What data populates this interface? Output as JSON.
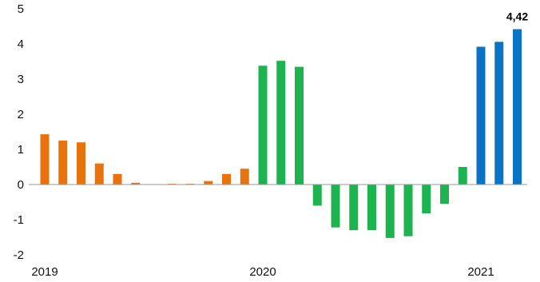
{
  "chart_data": {
    "type": "bar",
    "title": "",
    "xlabel": "",
    "ylabel": "",
    "ylim": [
      -2,
      5
    ],
    "yticks": [
      "-2",
      "-1",
      "0",
      "1",
      "2",
      "3",
      "4",
      "5"
    ],
    "x_labels": [
      "2019",
      "2020",
      "2021"
    ],
    "grid": false,
    "colors": {
      "orange": "#E8720C",
      "green": "#1DB350",
      "blue": "#0A74C4"
    },
    "bars": [
      {
        "value": 1.43,
        "color": "orange"
      },
      {
        "value": 1.25,
        "color": "orange"
      },
      {
        "value": 1.2,
        "color": "orange"
      },
      {
        "value": 0.6,
        "color": "orange"
      },
      {
        "value": 0.3,
        "color": "orange"
      },
      {
        "value": 0.05,
        "color": "orange"
      },
      {
        "value": 0.0,
        "color": "orange"
      },
      {
        "value": 0.02,
        "color": "orange"
      },
      {
        "value": 0.02,
        "color": "orange"
      },
      {
        "value": 0.1,
        "color": "orange"
      },
      {
        "value": 0.3,
        "color": "orange"
      },
      {
        "value": 0.45,
        "color": "orange"
      },
      {
        "value": 3.38,
        "color": "green"
      },
      {
        "value": 3.52,
        "color": "green"
      },
      {
        "value": 3.35,
        "color": "green"
      },
      {
        "value": -0.6,
        "color": "green"
      },
      {
        "value": -1.22,
        "color": "green"
      },
      {
        "value": -1.3,
        "color": "green"
      },
      {
        "value": -1.3,
        "color": "green"
      },
      {
        "value": -1.52,
        "color": "green"
      },
      {
        "value": -1.47,
        "color": "green"
      },
      {
        "value": -0.82,
        "color": "green"
      },
      {
        "value": -0.55,
        "color": "green"
      },
      {
        "value": 0.5,
        "color": "green"
      },
      {
        "value": 3.92,
        "color": "blue"
      },
      {
        "value": 4.06,
        "color": "blue"
      },
      {
        "value": 4.42,
        "color": "blue"
      }
    ],
    "data_labels": [
      {
        "bar_index": 26,
        "text": "4,42"
      }
    ]
  }
}
